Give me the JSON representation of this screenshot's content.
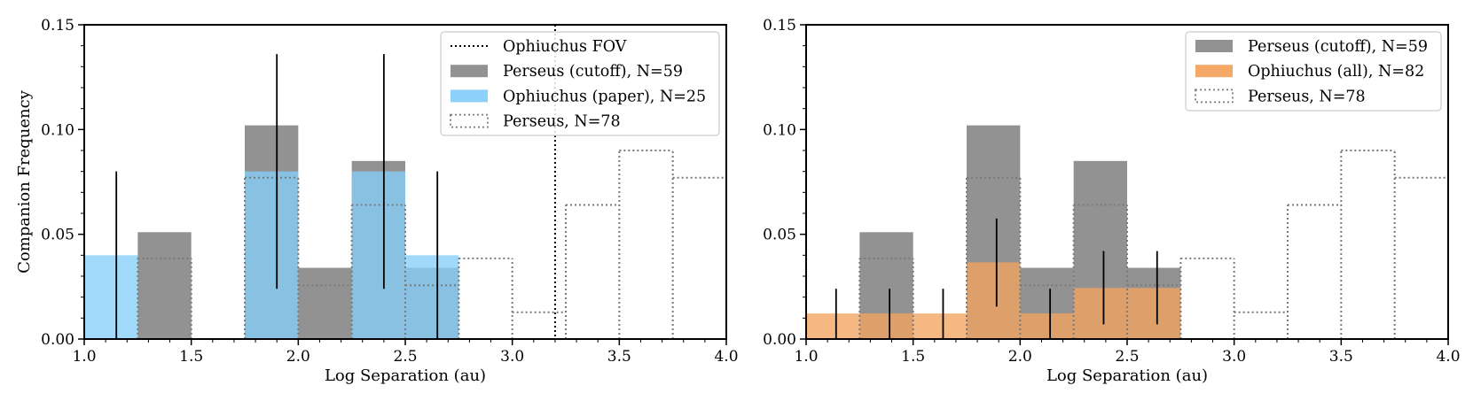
{
  "colors": {
    "perseus_cutoff": "#8c8c8c",
    "ophiuchus_paper": "#87cefa",
    "ophiuchus_all": "#f4a460",
    "perseus_all_edge": "#7a7a7a",
    "fov_line": "#000000",
    "error_bar": "#000000"
  },
  "chart_data": [
    {
      "type": "bar",
      "title": "",
      "xlabel": "Log Separation (au)",
      "ylabel": "Companion Frequency",
      "xlim": [
        1.0,
        4.0
      ],
      "ylim": [
        0.0,
        0.15
      ],
      "xticks": [
        "1.0",
        "1.5",
        "2.0",
        "2.5",
        "3.0",
        "3.5",
        "4.0"
      ],
      "yticks": [
        "0.00",
        "0.05",
        "0.10",
        "0.15"
      ],
      "bin_edges": [
        1.0,
        1.25,
        1.5,
        1.75,
        2.0,
        2.25,
        2.5,
        2.75,
        3.0,
        3.25,
        3.5,
        3.75,
        4.0
      ],
      "fov_line_x": 3.2,
      "legend_position": "top-right",
      "series": [
        {
          "name": "Perseus (cutoff), N=59",
          "style": "filled",
          "color_key": "perseus_cutoff",
          "values": [
            0,
            0.051,
            0,
            0.102,
            0.034,
            0.085,
            0.034,
            null,
            null,
            null,
            null,
            null
          ]
        },
        {
          "name": "Ophiuchus (paper), N=25",
          "style": "filled",
          "color_key": "ophiuchus_paper",
          "values": [
            0.04,
            0,
            0,
            0.08,
            0,
            0.08,
            0.04,
            null,
            null,
            null,
            null,
            null
          ]
        },
        {
          "name": "Perseus, N=78",
          "style": "dotted-step",
          "color_key": "perseus_all_edge",
          "values": [
            0,
            0.0385,
            0,
            0.077,
            0.0256,
            0.064,
            0.0256,
            0.0385,
            0.0128,
            0.064,
            0.09,
            0.077
          ]
        }
      ],
      "fov_legend_name": "Ophiuchus FOV",
      "legend_order": [
        "Ophiuchus FOV",
        "Perseus (cutoff), N=59",
        "Ophiuchus (paper), N=25",
        "Perseus, N=78"
      ],
      "error_bars": [
        {
          "x": 1.15,
          "low": 0.0,
          "high": 0.08
        },
        {
          "x": 1.9,
          "low": 0.024,
          "high": 0.136
        },
        {
          "x": 2.4,
          "low": 0.024,
          "high": 0.136
        },
        {
          "x": 2.65,
          "low": 0.0,
          "high": 0.08
        }
      ]
    },
    {
      "type": "bar",
      "title": "",
      "xlabel": "Log Separation (au)",
      "ylabel": "",
      "xlim": [
        1.0,
        4.0
      ],
      "ylim": [
        0.0,
        0.15
      ],
      "xticks": [
        "1.0",
        "1.5",
        "2.0",
        "2.5",
        "3.0",
        "3.5",
        "4.0"
      ],
      "yticks": [
        "0.00",
        "0.05",
        "0.10",
        "0.15"
      ],
      "bin_edges": [
        1.0,
        1.25,
        1.5,
        1.75,
        2.0,
        2.25,
        2.5,
        2.75,
        3.0,
        3.25,
        3.5,
        3.75,
        4.0
      ],
      "legend_position": "top-right",
      "series": [
        {
          "name": "Perseus (cutoff), N=59",
          "style": "filled",
          "color_key": "perseus_cutoff",
          "values": [
            0,
            0.051,
            0,
            0.102,
            0.034,
            0.085,
            0.034,
            null,
            null,
            null,
            null,
            null
          ]
        },
        {
          "name": "Ophiuchus (all), N=82",
          "style": "filled",
          "color_key": "ophiuchus_all",
          "values": [
            0.0122,
            0.0122,
            0.0122,
            0.0366,
            0.0122,
            0.0244,
            0.0244,
            null,
            null,
            null,
            null,
            null
          ]
        },
        {
          "name": "Perseus, N=78",
          "style": "dotted-step",
          "color_key": "perseus_all_edge",
          "values": [
            0,
            0.0385,
            0,
            0.077,
            0.0256,
            0.064,
            0.0256,
            0.0385,
            0.0128,
            0.064,
            0.09,
            0.077
          ]
        }
      ],
      "legend_order": [
        "Perseus (cutoff), N=59",
        "Ophiuchus (all), N=82",
        "Perseus, N=78"
      ],
      "error_bars": [
        {
          "x": 1.14,
          "low": 0.0,
          "high": 0.024
        },
        {
          "x": 1.39,
          "low": 0.0,
          "high": 0.024
        },
        {
          "x": 1.64,
          "low": 0.0,
          "high": 0.024
        },
        {
          "x": 1.89,
          "low": 0.0155,
          "high": 0.0575
        },
        {
          "x": 2.14,
          "low": 0.0,
          "high": 0.024
        },
        {
          "x": 2.39,
          "low": 0.007,
          "high": 0.042
        },
        {
          "x": 2.64,
          "low": 0.007,
          "high": 0.042
        }
      ]
    }
  ]
}
